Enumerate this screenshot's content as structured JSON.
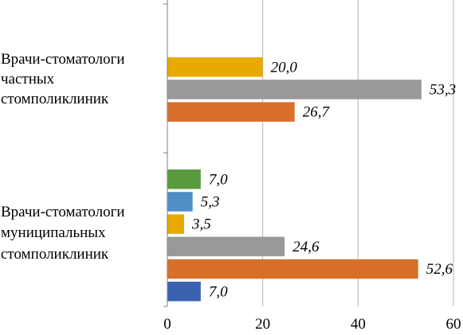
{
  "chart_data": {
    "type": "bar",
    "orientation": "horizontal",
    "xlim": [
      0,
      60
    ],
    "x_ticks": [
      "0",
      "20",
      "40",
      "60"
    ],
    "grid": "vertical",
    "groups": [
      {
        "label_lines": [
          "Врачи-стоматологи",
          "частных",
          "стомполиклиник"
        ],
        "bars": [
          {
            "value": 20.0,
            "label": "20,0",
            "color": "#e8a900"
          },
          {
            "value": 53.3,
            "label": "53,3",
            "color": "#999999"
          },
          {
            "value": 26.7,
            "label": "26,7",
            "color": "#d86f2a"
          }
        ]
      },
      {
        "label_lines": [
          "Врачи-стоматологи",
          "муниципальных",
          "стомполиклиник"
        ],
        "bars": [
          {
            "value": 7.0,
            "label": "7,0",
            "color": "#5a9a3e"
          },
          {
            "value": 5.3,
            "label": "5,3",
            "color": "#4f8fc8"
          },
          {
            "value": 3.5,
            "label": "3,5",
            "color": "#e8a900"
          },
          {
            "value": 24.6,
            "label": "24,6",
            "color": "#999999"
          },
          {
            "value": 52.6,
            "label": "52,6",
            "color": "#d86f2a"
          },
          {
            "value": 7.0,
            "label": "7,0",
            "color": "#3b62b0"
          }
        ]
      }
    ]
  }
}
